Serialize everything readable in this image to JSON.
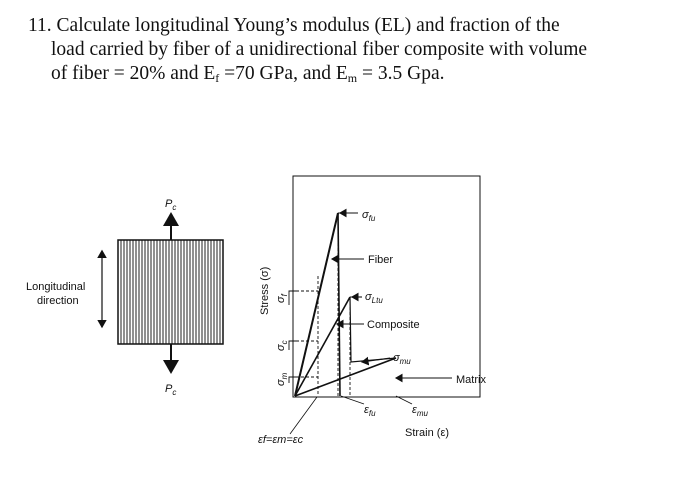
{
  "question": {
    "line1": "11. Calculate longitudinal Young’s modulus (EL) and fraction of the",
    "line2": "load carried by fiber of a unidirectional fiber composite with volume",
    "line3_pre": "of fiber = 20% and E",
    "line3_sub1": "f",
    "line3_mid": " =70 GPa, and E",
    "line3_sub2": "m",
    "line3_post": " = 3.5 Gpa."
  },
  "figure": {
    "longitudinal_line1": "Longitudinal",
    "longitudinal_line2": "direction",
    "load_top": "P",
    "load_top_sub": "c",
    "load_bottom": "P",
    "load_bottom_sub": "c",
    "stress_axis": "Stress (σ)",
    "sigma_f": "σ",
    "sigma_f_sub": "f",
    "sigma_c": "σ",
    "sigma_c_sub": "c",
    "sigma_m": "σ",
    "sigma_m_sub": "m",
    "strain_equal": "ε",
    "strain_equal_rest": "f=εm=εc",
    "sigma_fu": "σ",
    "sigma_fu_sub": "fu",
    "fiber": "Fiber",
    "sigma_ltu": "σ",
    "sigma_ltu_sub": "Ltu",
    "composite": "Composite",
    "sigma_mu": "σ",
    "sigma_mu_sub": "mu",
    "matrix": "Matrix",
    "eps_fu": "ε",
    "eps_fu_sub": "fu",
    "eps_mu": "ε",
    "eps_mu_sub": "mu",
    "strain_axis": "Strain (ε)"
  }
}
